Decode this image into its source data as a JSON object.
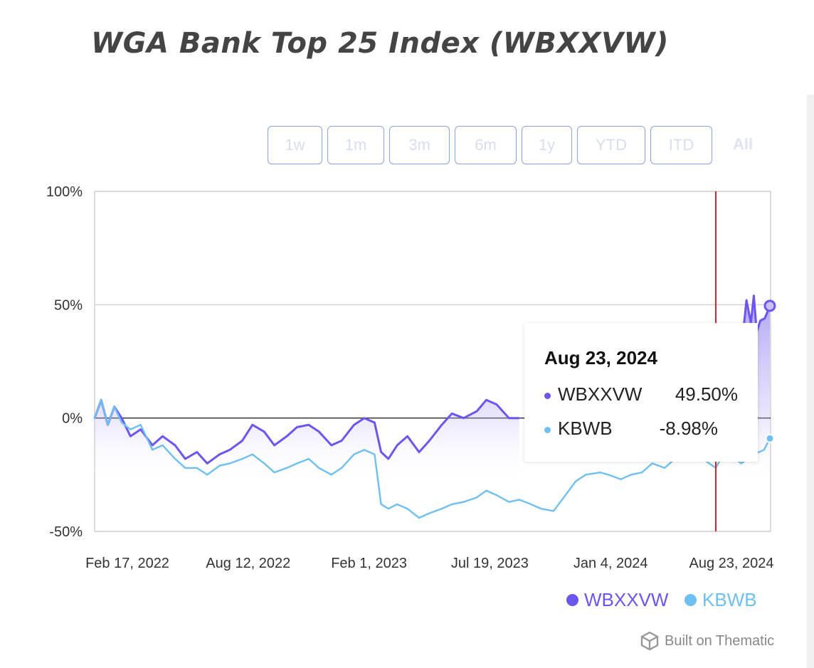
{
  "title": "WGA Bank Top 25 Index (WBXXVW)",
  "range_buttons": [
    "1w",
    "1m",
    "3m",
    "6m",
    "1y",
    "YTD",
    "ITD"
  ],
  "range_all": "All",
  "tooltip": {
    "date": "Aug 23, 2024",
    "rows": [
      {
        "name": "WBXXVW",
        "value": "49.50%"
      },
      {
        "name": "KBWB",
        "value": "-8.98%"
      }
    ]
  },
  "legend": [
    "WBXXVW",
    "KBWB"
  ],
  "footer": "Built on Thematic",
  "colors": {
    "wbxxvw": "#6b56f0",
    "kbwb": "#6ec0f2",
    "marker_line": "#d9232e"
  },
  "chart_data": {
    "type": "line",
    "title": "WGA Bank Top 25 Index (WBXXVW)",
    "x_tick_labels": [
      "Feb 17, 2022",
      "Aug 12, 2022",
      "Feb 1, 2023",
      "Jul 19, 2023",
      "Jan 4, 2024",
      "Aug 23, 2024"
    ],
    "y_tick_labels": [
      "100%",
      "50%",
      "0%",
      "-50%"
    ],
    "ylim": [
      -50,
      100
    ],
    "xlim": [
      "2022-02-11",
      "2024-08-24"
    ],
    "marker_date": "2024-06-10",
    "series": [
      {
        "name": "WBXXVW",
        "area": true,
        "points": [
          [
            "2022-02-11",
            0
          ],
          [
            "2022-02-20",
            8
          ],
          [
            "2022-03-01",
            -3
          ],
          [
            "2022-03-10",
            5
          ],
          [
            "2022-03-20",
            0
          ],
          [
            "2022-04-01",
            -8
          ],
          [
            "2022-04-15",
            -5
          ],
          [
            "2022-05-01",
            -12
          ],
          [
            "2022-05-15",
            -8
          ],
          [
            "2022-06-01",
            -12
          ],
          [
            "2022-06-15",
            -18
          ],
          [
            "2022-07-01",
            -15
          ],
          [
            "2022-07-15",
            -20
          ],
          [
            "2022-08-01",
            -16
          ],
          [
            "2022-08-15",
            -14
          ],
          [
            "2022-09-01",
            -10
          ],
          [
            "2022-09-15",
            -3
          ],
          [
            "2022-10-01",
            -6
          ],
          [
            "2022-10-15",
            -12
          ],
          [
            "2022-11-01",
            -8
          ],
          [
            "2022-11-15",
            -4
          ],
          [
            "2022-12-01",
            -3
          ],
          [
            "2022-12-15",
            -6
          ],
          [
            "2023-01-01",
            -12
          ],
          [
            "2023-01-15",
            -10
          ],
          [
            "2023-02-01",
            -3
          ],
          [
            "2023-02-15",
            0
          ],
          [
            "2023-03-01",
            -2
          ],
          [
            "2023-03-10",
            -15
          ],
          [
            "2023-03-20",
            -18
          ],
          [
            "2023-04-01",
            -12
          ],
          [
            "2023-04-15",
            -8
          ],
          [
            "2023-05-01",
            -15
          ],
          [
            "2023-05-15",
            -10
          ],
          [
            "2023-06-01",
            -3
          ],
          [
            "2023-06-15",
            2
          ],
          [
            "2023-07-01",
            0
          ],
          [
            "2023-07-19",
            3
          ],
          [
            "2023-08-01",
            8
          ],
          [
            "2023-08-15",
            6
          ],
          [
            "2023-09-01",
            0
          ],
          [
            "2023-09-15",
            0
          ]
        ]
      },
      {
        "name": "WBXXVW",
        "area": true,
        "points": [
          [
            "2024-07-01",
            0
          ],
          [
            "2024-07-15",
            30
          ],
          [
            "2024-07-22",
            52
          ],
          [
            "2024-07-28",
            42
          ],
          [
            "2024-08-01",
            54
          ],
          [
            "2024-08-05",
            38
          ],
          [
            "2024-08-10",
            43
          ],
          [
            "2024-08-16",
            44
          ],
          [
            "2024-08-23",
            49.5
          ]
        ]
      },
      {
        "name": "KBWB",
        "area": false,
        "points": [
          [
            "2022-02-11",
            0
          ],
          [
            "2022-02-20",
            8
          ],
          [
            "2022-03-01",
            -3
          ],
          [
            "2022-03-10",
            5
          ],
          [
            "2022-03-20",
            -2
          ],
          [
            "2022-04-01",
            -5
          ],
          [
            "2022-04-15",
            -3
          ],
          [
            "2022-05-01",
            -14
          ],
          [
            "2022-05-15",
            -12
          ],
          [
            "2022-06-01",
            -18
          ],
          [
            "2022-06-15",
            -22
          ],
          [
            "2022-07-01",
            -22
          ],
          [
            "2022-07-15",
            -25
          ],
          [
            "2022-08-01",
            -21
          ],
          [
            "2022-08-15",
            -20
          ],
          [
            "2022-09-01",
            -18
          ],
          [
            "2022-09-15",
            -16
          ],
          [
            "2022-10-01",
            -20
          ],
          [
            "2022-10-15",
            -24
          ],
          [
            "2022-11-01",
            -22
          ],
          [
            "2022-11-15",
            -20
          ],
          [
            "2022-12-01",
            -18
          ],
          [
            "2022-12-15",
            -22
          ],
          [
            "2023-01-01",
            -25
          ],
          [
            "2023-01-15",
            -22
          ],
          [
            "2023-02-01",
            -16
          ],
          [
            "2023-02-15",
            -14
          ],
          [
            "2023-03-01",
            -16
          ],
          [
            "2023-03-10",
            -38
          ],
          [
            "2023-03-20",
            -40
          ],
          [
            "2023-04-01",
            -38
          ],
          [
            "2023-04-15",
            -40
          ],
          [
            "2023-05-01",
            -44
          ],
          [
            "2023-05-15",
            -42
          ],
          [
            "2023-06-01",
            -40
          ],
          [
            "2023-06-15",
            -38
          ],
          [
            "2023-07-01",
            -37
          ],
          [
            "2023-07-19",
            -35
          ],
          [
            "2023-08-01",
            -32
          ],
          [
            "2023-08-15",
            -34
          ],
          [
            "2023-09-01",
            -37
          ],
          [
            "2023-09-15",
            -36
          ],
          [
            "2023-10-01",
            -38
          ],
          [
            "2023-10-15",
            -40
          ],
          [
            "2023-11-01",
            -41
          ],
          [
            "2023-11-15",
            -35
          ],
          [
            "2023-12-01",
            -28
          ],
          [
            "2023-12-15",
            -25
          ],
          [
            "2024-01-04",
            -24
          ],
          [
            "2024-01-15",
            -25
          ],
          [
            "2024-02-01",
            -27
          ],
          [
            "2024-02-15",
            -25
          ],
          [
            "2024-03-01",
            -24
          ],
          [
            "2024-03-15",
            -20
          ],
          [
            "2024-04-01",
            -22
          ],
          [
            "2024-04-15",
            -18
          ],
          [
            "2024-05-01",
            -18
          ],
          [
            "2024-05-15",
            -16
          ],
          [
            "2024-06-01",
            -20
          ],
          [
            "2024-06-10",
            -22
          ],
          [
            "2024-06-15",
            -19
          ],
          [
            "2024-07-01",
            -17
          ],
          [
            "2024-07-15",
            -20
          ],
          [
            "2024-08-01",
            -16
          ],
          [
            "2024-08-15",
            -14
          ],
          [
            "2024-08-23",
            -8.98
          ]
        ]
      }
    ]
  }
}
